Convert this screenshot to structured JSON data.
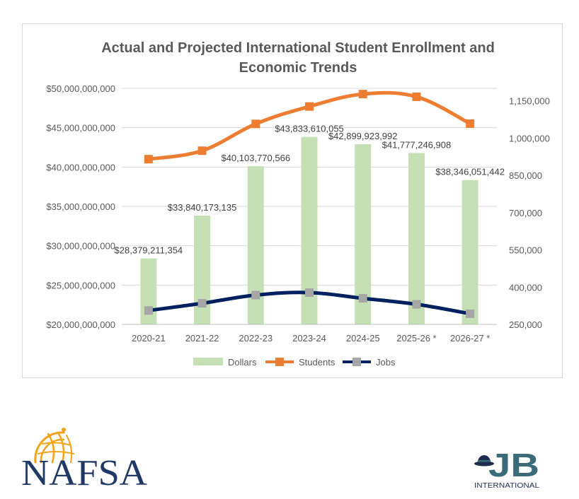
{
  "chart_data": {
    "type": "bar",
    "title": "Actual and Projected International Student Enrollment and Economic Trends",
    "title_lines": [
      "Actual and Projected International Student Enrollment and",
      "Economic Trends"
    ],
    "categories": [
      "2020-21",
      "2021-22",
      "2022-23",
      "2023-24",
      "2024-25",
      "2025-26 *",
      "2026-27 *"
    ],
    "y_left": {
      "min": 20000000000,
      "max": 50000000000,
      "step": 5000000000,
      "ticks": [
        "$20,000,000,000",
        "$25,000,000,000",
        "$30,000,000,000",
        "$35,000,000,000",
        "$40,000,000,000",
        "$45,000,000,000",
        "$50,000,000,000"
      ]
    },
    "y_right": {
      "min": 250000,
      "max": 1200000,
      "tick_values": [
        250000,
        400000,
        550000,
        700000,
        850000,
        1000000,
        1150000
      ],
      "ticks": [
        "250,000",
        "400,000",
        "550,000",
        "700,000",
        "850,000",
        "1,000,000",
        "1,150,000"
      ]
    },
    "series": [
      {
        "name": "Dollars",
        "kind": "bar",
        "axis": "left",
        "color": "#c5e0b4",
        "values": [
          28379211354,
          33840173135,
          40103770566,
          43833610055,
          42899923992,
          41777246908,
          38346051442
        ],
        "labels": [
          "$28,379,211,354",
          "$33,840,173,135",
          "$40,103,770,566",
          "$43,833,610,055",
          "$42,899,923,992",
          "$41,777,246,908",
          "$38,346,051,442"
        ]
      },
      {
        "name": "Students",
        "kind": "line",
        "axis": "right",
        "color": "#ed7d31",
        "values": [
          915000,
          949000,
          1057000,
          1127000,
          1177000,
          1166000,
          1058000
        ]
      },
      {
        "name": "Jobs",
        "kind": "line",
        "axis": "right",
        "color": "#002060",
        "marker_color": "#a6a6a6",
        "values": [
          306000,
          335000,
          368000,
          378000,
          355000,
          331000,
          293000
        ]
      }
    ],
    "grid": true,
    "legend": "bottom"
  },
  "logos": {
    "nafsa": "NAFSA",
    "jb": "JB",
    "jb_sub": "INTERNATIONAL"
  },
  "colors": {
    "nafsa_navy": "#1f3864",
    "nafsa_gold": "#f2a31a",
    "jb_teal": "#3b6b78",
    "jb_dark": "#1f2d4d"
  }
}
